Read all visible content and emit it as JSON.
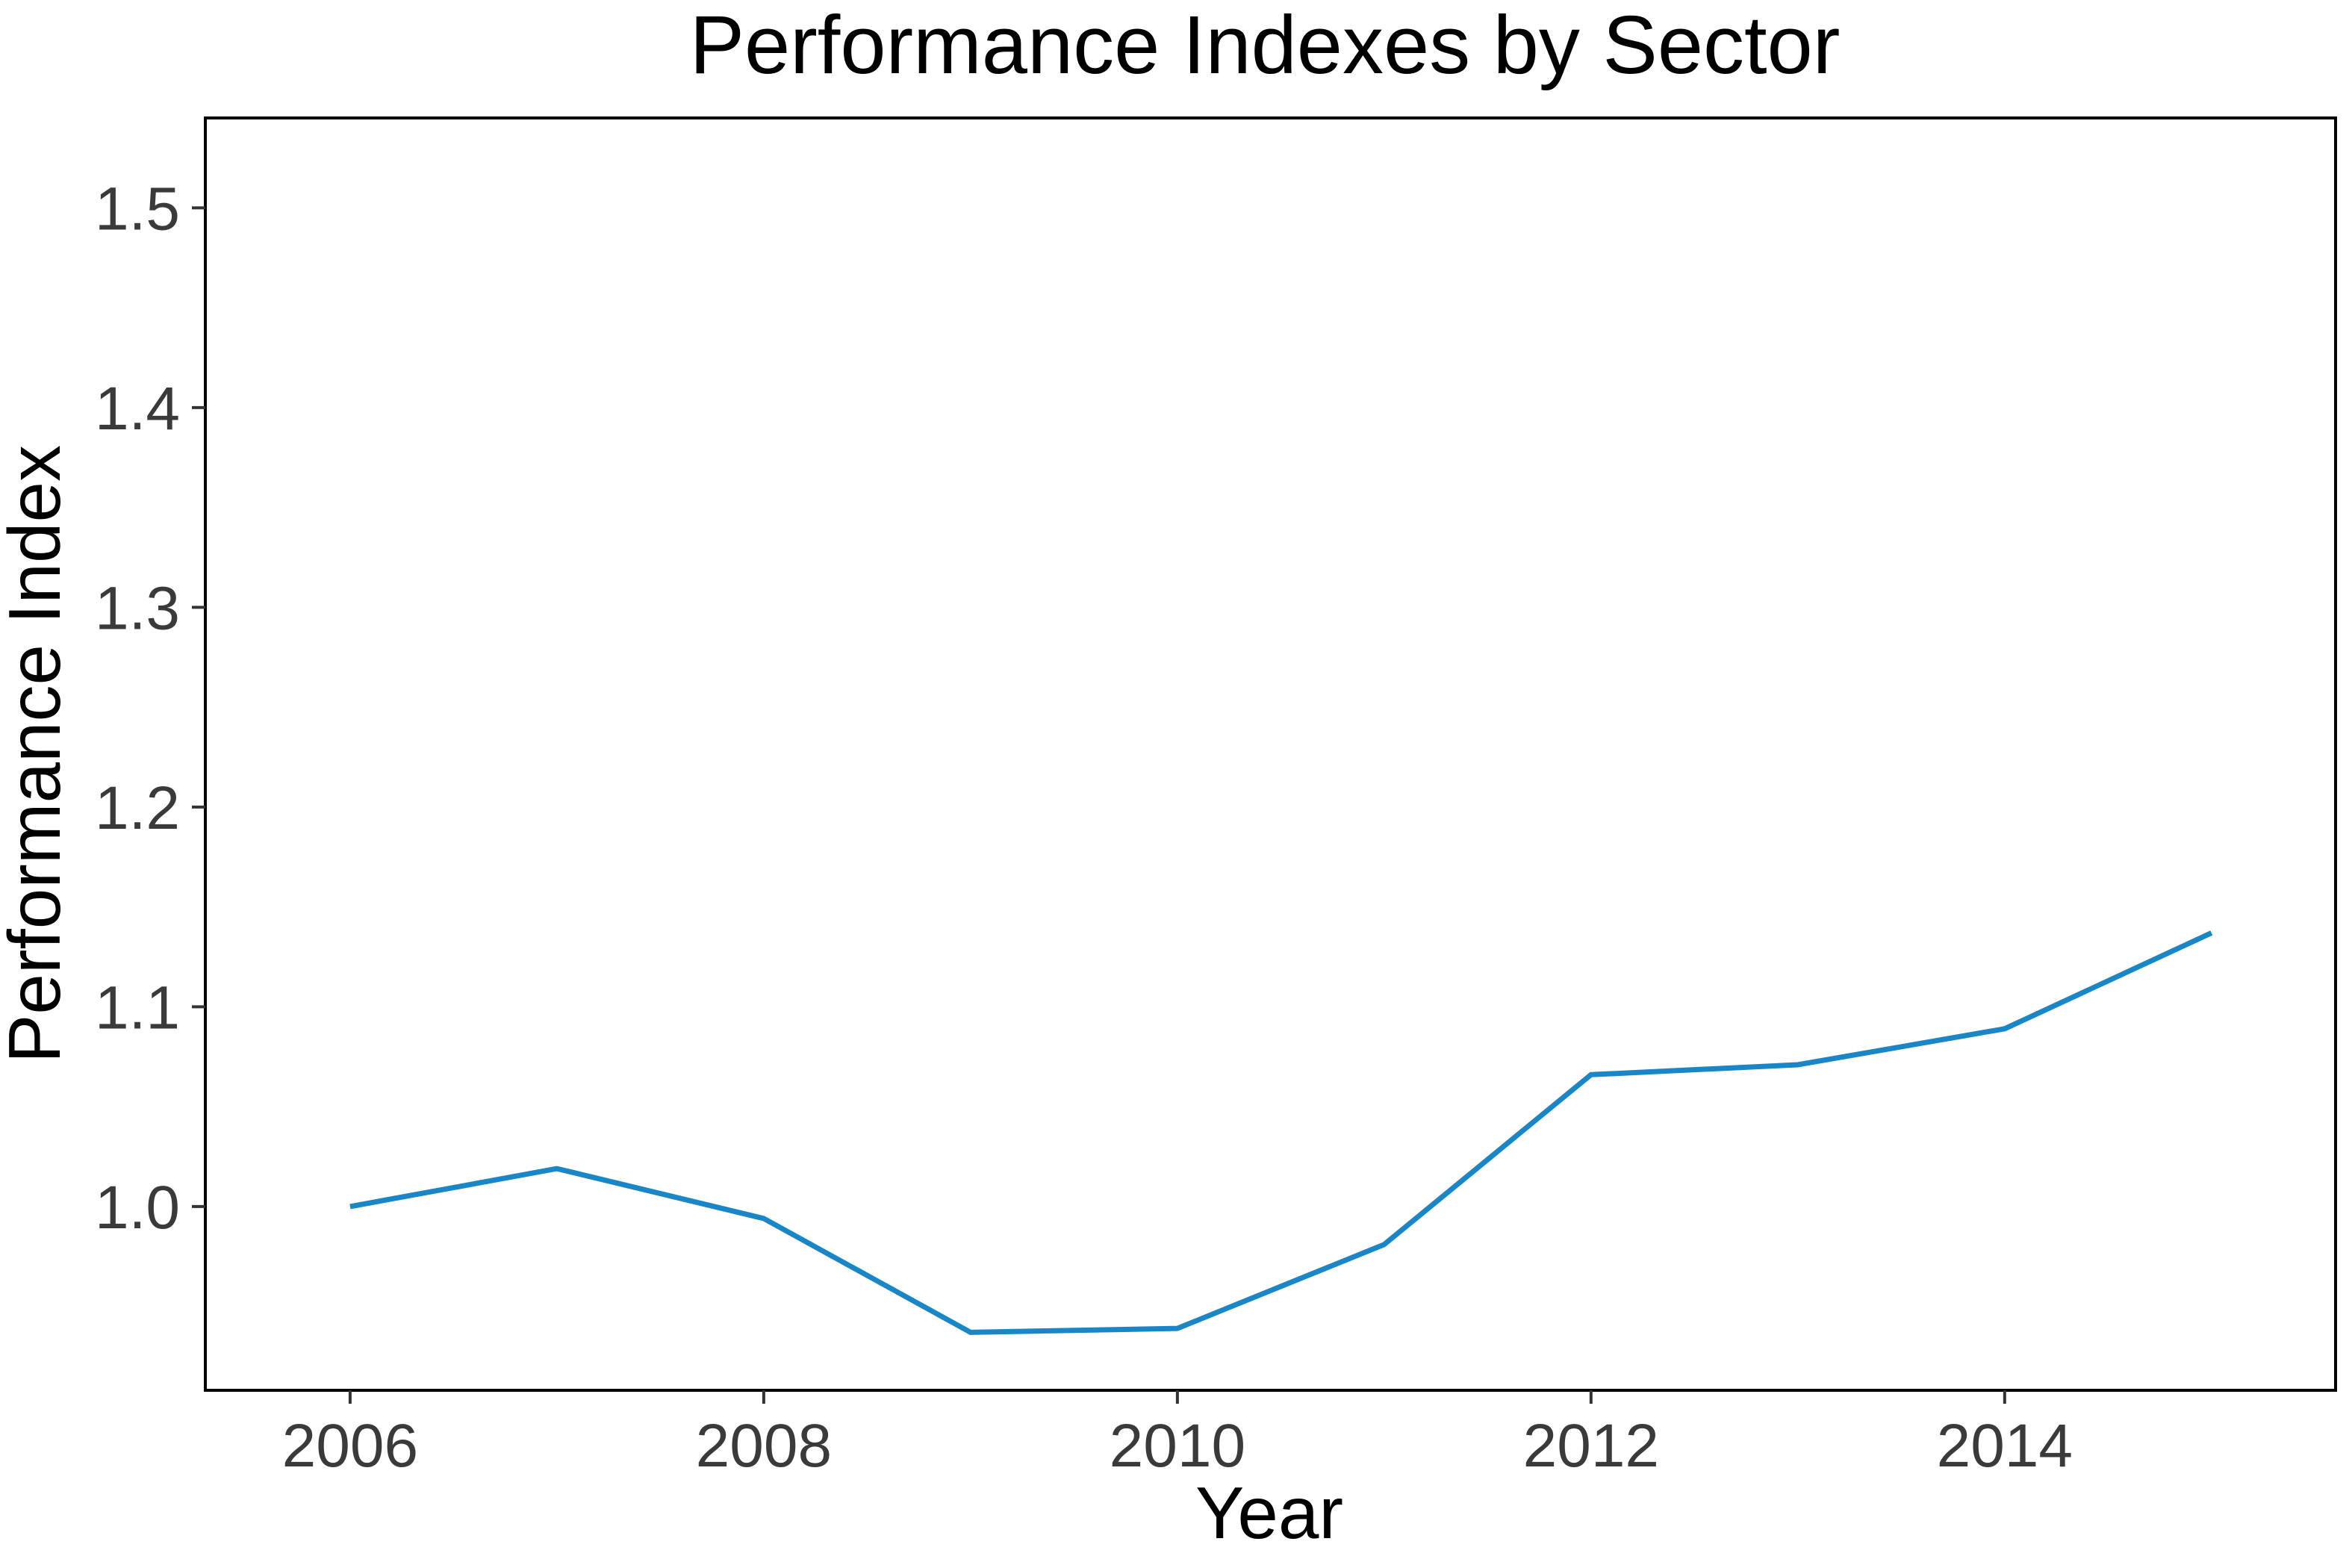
{
  "chart_data": {
    "type": "line",
    "title": "Performance Indexes by Sector",
    "xlabel": "Year",
    "ylabel": "Performance Index",
    "xlim": [
      2005.3,
      2015.6
    ],
    "ylim": [
      0.908,
      1.545
    ],
    "x_ticks": [
      2006,
      2008,
      2010,
      2012,
      2014
    ],
    "x_tick_labels": [
      "2006",
      "2008",
      "2010",
      "2012",
      "2014"
    ],
    "y_ticks": [
      1.0,
      1.1,
      1.2,
      1.3,
      1.4,
      1.5
    ],
    "y_tick_labels": [
      "1.0",
      "1.1",
      "1.2",
      "1.3",
      "1.4",
      "1.5"
    ],
    "grid": false,
    "legend": "none",
    "colors": {
      "series": "#1a86c5"
    },
    "series": [
      {
        "x": [
          2006,
          2007,
          2008,
          2009,
          2010,
          2011,
          2012,
          2013,
          2014,
          2015
        ],
        "values": [
          1.0,
          1.019,
          0.994,
          0.937,
          0.939,
          0.981,
          1.066,
          1.071,
          1.089,
          1.137
        ]
      }
    ]
  }
}
